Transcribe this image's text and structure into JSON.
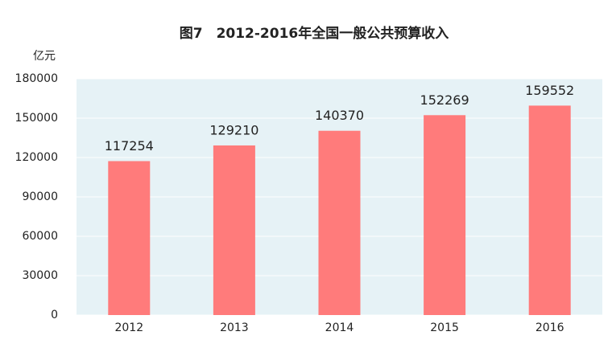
{
  "chart_data": {
    "type": "bar",
    "title": "图7　2012-2016年全国一般公共预算收入",
    "y_label": "亿元",
    "categories": [
      "2012",
      "2013",
      "2014",
      "2015",
      "2016"
    ],
    "values": [
      117254,
      129210,
      140370,
      152269,
      159552
    ],
    "color": "#ff7b7b",
    "ylim": [
      0,
      180000
    ],
    "yticks": [
      0,
      30000,
      60000,
      90000,
      120000,
      150000,
      180000
    ],
    "grid": true
  }
}
